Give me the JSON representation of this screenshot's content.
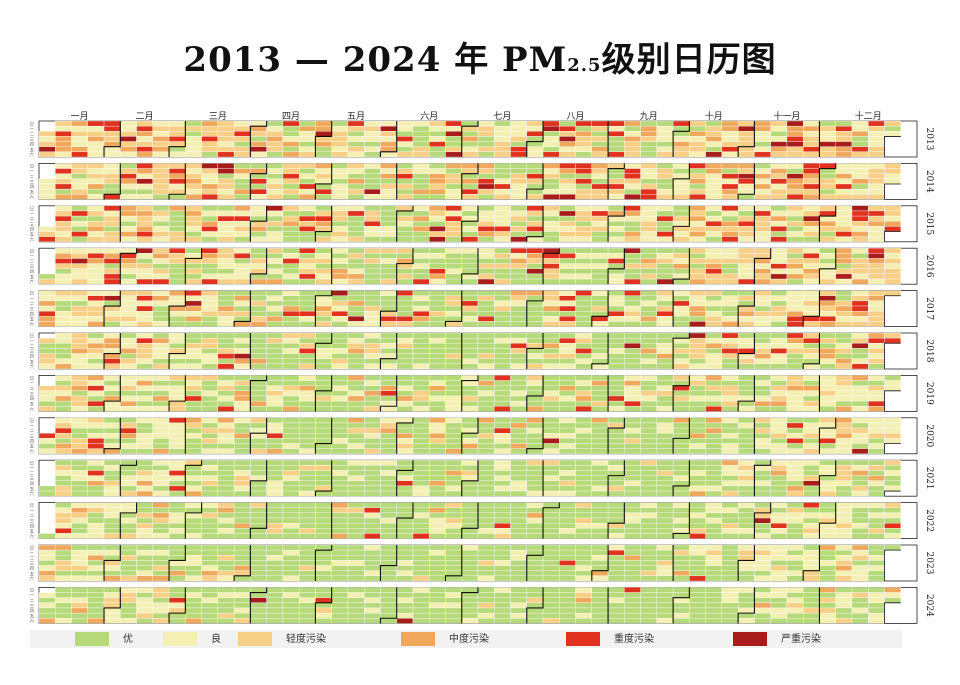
{
  "title": {
    "years": "2013 — 2024",
    "nian": "年",
    "pm": "PM",
    "sub": "2.5",
    "rest": "级别日历图"
  },
  "chart_data": {
    "type": "heatmap",
    "title": "2013 — 2024 年 PM2.5 级别日历图",
    "months": [
      "一月",
      "二月",
      "三月",
      "四月",
      "五月",
      "六月",
      "七月",
      "八月",
      "九月",
      "十月",
      "十一月",
      "十二月"
    ],
    "weekday_labels": [
      "日",
      "一",
      "二",
      "三",
      "四",
      "五",
      "六"
    ],
    "years": [
      2013,
      2014,
      2015,
      2016,
      2017,
      2018,
      2019,
      2020,
      2021,
      2022,
      2023,
      2024
    ],
    "levels": [
      "优",
      "良",
      "轻度污染",
      "中度污染",
      "重度污染",
      "严重污染"
    ],
    "level_colors": [
      "#b6d97a",
      "#f4f0b4",
      "#f7cf86",
      "#f0a95c",
      "#e0321f",
      "#a81d1c"
    ],
    "year_level_weights": [
      [
        0.18,
        0.32,
        0.24,
        0.12,
        0.1,
        0.04
      ],
      [
        0.2,
        0.32,
        0.24,
        0.11,
        0.09,
        0.04
      ],
      [
        0.22,
        0.33,
        0.23,
        0.1,
        0.08,
        0.04
      ],
      [
        0.28,
        0.33,
        0.2,
        0.09,
        0.07,
        0.03
      ],
      [
        0.32,
        0.32,
        0.19,
        0.08,
        0.06,
        0.03
      ],
      [
        0.45,
        0.3,
        0.14,
        0.06,
        0.04,
        0.01
      ],
      [
        0.5,
        0.3,
        0.12,
        0.05,
        0.025,
        0.005
      ],
      [
        0.55,
        0.28,
        0.1,
        0.04,
        0.025,
        0.005
      ],
      [
        0.62,
        0.25,
        0.08,
        0.03,
        0.015,
        0.005
      ],
      [
        0.66,
        0.23,
        0.07,
        0.025,
        0.012,
        0.003
      ],
      [
        0.64,
        0.24,
        0.08,
        0.025,
        0.012,
        0.003
      ],
      [
        0.7,
        0.21,
        0.06,
        0.02,
        0.008,
        0.002
      ]
    ],
    "legend_position": "bottom"
  }
}
